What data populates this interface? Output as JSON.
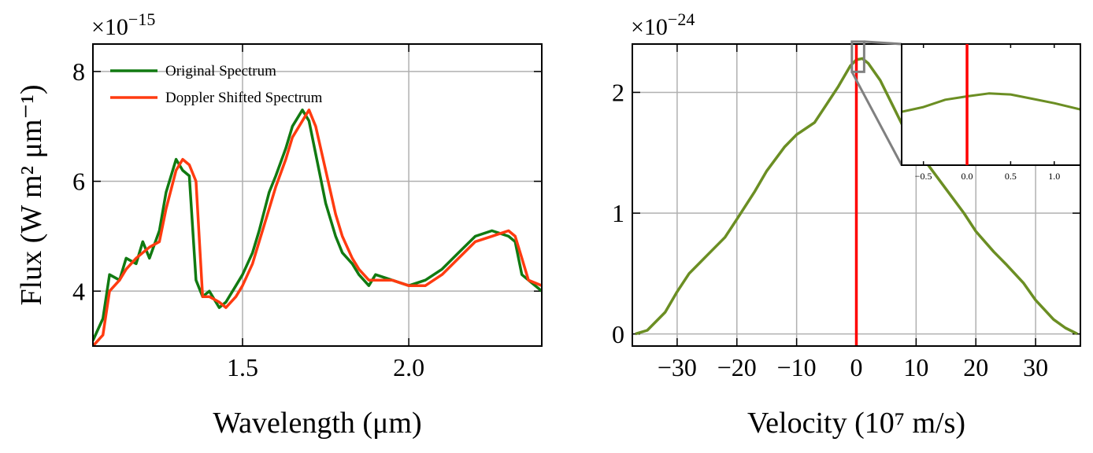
{
  "chart_data": [
    {
      "type": "line",
      "x_label": "Wavelength (μm)",
      "y_label": "Flux (W m² μm⁻¹)",
      "offset_text": "×10",
      "offset_exponent": "−15",
      "xlim": [
        1.05,
        2.4
      ],
      "ylim": [
        3,
        8.5
      ],
      "xticks": [
        1.5,
        {
          "value": 2,
          "label": "2.0"
        }
      ],
      "yticks": [
        4,
        6,
        8
      ],
      "grid": true,
      "legend": "upper left",
      "x": [
        1.05,
        1.08,
        1.1,
        1.13,
        1.15,
        1.18,
        1.2,
        1.22,
        1.25,
        1.27,
        1.3,
        1.32,
        1.34,
        1.36,
        1.38,
        1.4,
        1.43,
        1.45,
        1.48,
        1.5,
        1.53,
        1.55,
        1.58,
        1.6,
        1.63,
        1.65,
        1.68,
        1.7,
        1.72,
        1.75,
        1.78,
        1.8,
        1.83,
        1.85,
        1.88,
        1.9,
        1.95,
        2.0,
        2.05,
        2.1,
        2.15,
        2.2,
        2.25,
        2.3,
        2.32,
        2.34,
        2.36,
        2.4
      ],
      "series": [
        {
          "name": "Original Spectrum",
          "color": "#117a11",
          "values": [
            3.1,
            3.5,
            4.3,
            4.2,
            4.6,
            4.5,
            4.9,
            4.6,
            5.1,
            5.8,
            6.4,
            6.2,
            6.1,
            4.2,
            3.9,
            4.0,
            3.7,
            3.8,
            4.1,
            4.3,
            4.7,
            5.1,
            5.8,
            6.1,
            6.6,
            7.0,
            7.3,
            7.1,
            6.5,
            5.6,
            5.0,
            4.7,
            4.5,
            4.3,
            4.1,
            4.3,
            4.2,
            4.1,
            4.2,
            4.4,
            4.7,
            5.0,
            5.1,
            5.0,
            4.9,
            4.3,
            4.2,
            4.0
          ]
        },
        {
          "name": "Doppler Shifted Spectrum",
          "color": "#ff3b10",
          "values": [
            3.0,
            3.2,
            4.0,
            4.2,
            4.4,
            4.6,
            4.7,
            4.8,
            4.9,
            5.5,
            6.2,
            6.4,
            6.3,
            6.0,
            3.9,
            3.9,
            3.8,
            3.7,
            3.9,
            4.1,
            4.5,
            4.9,
            5.5,
            5.9,
            6.4,
            6.8,
            7.1,
            7.3,
            7.0,
            6.2,
            5.4,
            5.0,
            4.6,
            4.4,
            4.2,
            4.2,
            4.2,
            4.1,
            4.1,
            4.3,
            4.6,
            4.9,
            5.0,
            5.1,
            5.0,
            4.6,
            4.2,
            4.1
          ]
        }
      ]
    },
    {
      "type": "line",
      "x_label": "Velocity (10⁷ m/s)",
      "offset_text": "×10",
      "offset_exponent": "−24",
      "xlim": [
        -37.5,
        37.5
      ],
      "ylim": [
        -0.1,
        2.4
      ],
      "xticks": [
        {
          "value": -30,
          "label": "−30"
        },
        {
          "value": -20,
          "label": "−20"
        },
        {
          "value": -10,
          "label": "−10"
        },
        0,
        10,
        20,
        30
      ],
      "yticks": [
        0,
        1,
        2
      ],
      "grid": true,
      "x": [
        -37,
        -35,
        -32,
        -30,
        -28,
        -25,
        -22,
        -20,
        -17,
        -15,
        -12,
        -10,
        -7,
        -5,
        -3,
        -1,
        0,
        1,
        2,
        4,
        6,
        8,
        10,
        12,
        15,
        18,
        20,
        23,
        25,
        28,
        30,
        33,
        35,
        37
      ],
      "series": [
        {
          "color": "#6b8e23",
          "values": [
            0.0,
            0.03,
            0.18,
            0.35,
            0.5,
            0.65,
            0.8,
            0.95,
            1.18,
            1.35,
            1.55,
            1.65,
            1.75,
            1.9,
            2.05,
            2.22,
            2.27,
            2.28,
            2.24,
            2.1,
            1.9,
            1.7,
            1.55,
            1.4,
            1.2,
            1.0,
            0.85,
            0.68,
            0.58,
            0.42,
            0.28,
            0.12,
            0.05,
            0.0
          ]
        }
      ],
      "vline": {
        "x": 0,
        "color": "#ff0000"
      },
      "inset": {
        "xlim": [
          -0.75,
          1.3
        ],
        "ylim": [
          2.17,
          2.42
        ],
        "xticks": [
          {
            "value": -0.5,
            "label": "−0.5"
          },
          {
            "value": 0,
            "label": "0.0"
          },
          0.5,
          {
            "value": 1,
            "label": "1.0"
          }
        ],
        "x": [
          -0.75,
          -0.5,
          -0.25,
          0,
          0.25,
          0.5,
          0.75,
          1,
          1.3
        ],
        "series": [
          {
            "color": "#6b8e23",
            "values": [
              2.28,
              2.29,
              2.305,
              2.312,
              2.318,
              2.316,
              2.307,
              2.298,
              2.285
            ]
          }
        ]
      }
    }
  ]
}
